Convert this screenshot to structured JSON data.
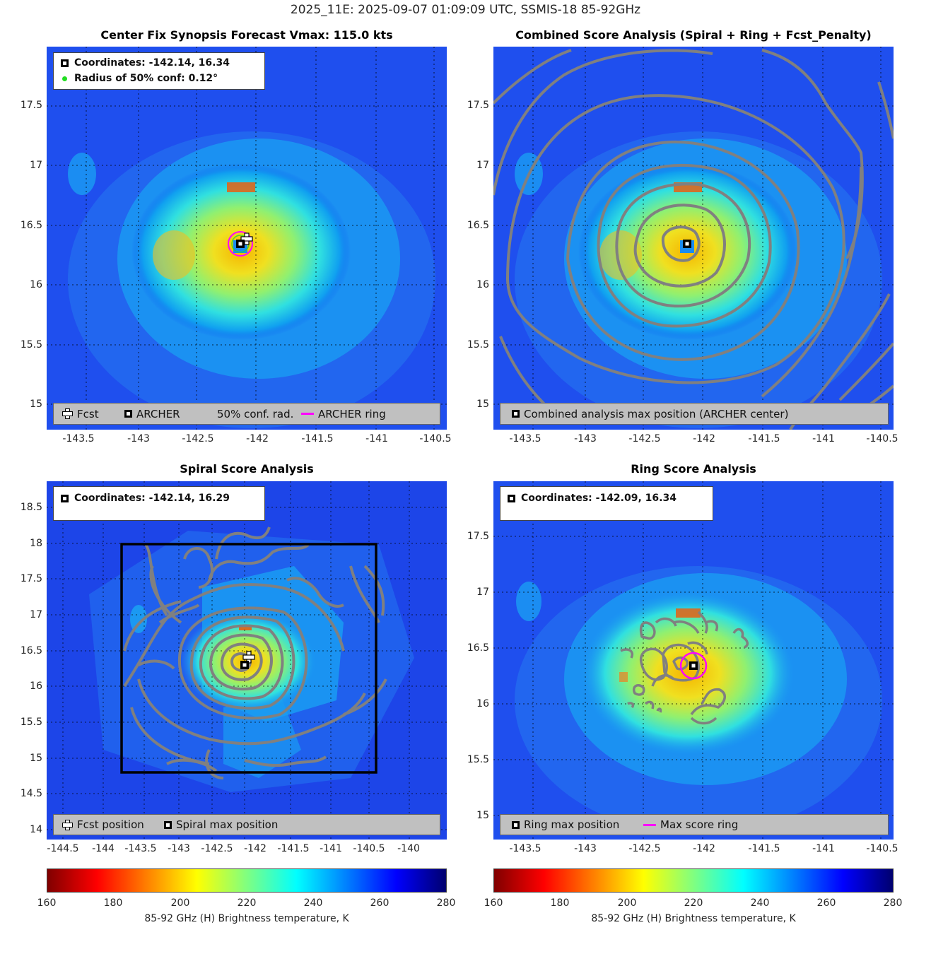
{
  "suptitle": "2025_11E: 2025-09-07 01:09:09 UTC, SSMIS-18 85-92GHz",
  "panels": {
    "synopsis": {
      "title": "Center Fix Synopsis     Forecast Vmax: 115.0 kts",
      "info_coords": "Coordinates: -142.14, 16.34",
      "info_radius": "Radius of 50% conf: 0.12°",
      "legend": {
        "fcst": "Fcst",
        "archer": "ARCHER",
        "conf": "50% conf. rad.",
        "ring": "ARCHER ring"
      }
    },
    "combined": {
      "title": "Combined Score Analysis (Spiral + Ring + Fcst_Penalty)",
      "legend": {
        "max": "Combined analysis max position (ARCHER center)"
      }
    },
    "spiral": {
      "title": "Spiral Score Analysis",
      "info_coords": "Coordinates: -142.14, 16.29",
      "legend": {
        "fcst": "Fcst position",
        "max": "Spiral max position"
      }
    },
    "ring": {
      "title": "Ring Score Analysis",
      "info_coords": "Coordinates: -142.09, 16.34",
      "legend": {
        "max": "Ring max position",
        "ring": "Max score ring"
      }
    }
  },
  "colorbar": {
    "label": "85-92 GHz (H) Brightness temperature, K",
    "ticks": [
      "160",
      "180",
      "200",
      "220",
      "240",
      "260",
      "280"
    ]
  },
  "chart_data": [
    {
      "type": "heatmap",
      "title": "Center Fix Synopsis     Forecast Vmax: 115.0 kts",
      "x_ticks": [
        "-143.5",
        "-143",
        "-142.5",
        "-142",
        "-141.5",
        "-141",
        "-140.5"
      ],
      "y_ticks": [
        "17.5",
        "17",
        "16.5",
        "16",
        "15.5",
        "15"
      ],
      "xlim": [
        -143.85,
        -140.5
      ],
      "ylim": [
        14.8,
        18.05
      ],
      "archer_center": [
        -142.14,
        16.34
      ],
      "forecast_center": [
        -142.08,
        16.38
      ],
      "conf_radius_deg": 0.12,
      "clim": [
        160,
        280
      ]
    },
    {
      "type": "heatmap",
      "title": "Combined Score Analysis (Spiral + Ring + Fcst_Penalty)",
      "x_ticks": [
        "-143.5",
        "-143",
        "-142.5",
        "-142",
        "-141.5",
        "-141",
        "-140.5"
      ],
      "y_ticks": [
        "17.5",
        "17",
        "16.5",
        "16",
        "15.5",
        "15"
      ],
      "xlim": [
        -143.85,
        -140.5
      ],
      "ylim": [
        14.8,
        18.05
      ],
      "max_position": [
        -142.14,
        16.34
      ],
      "clim": [
        160,
        280
      ]
    },
    {
      "type": "heatmap",
      "title": "Spiral Score Analysis",
      "x_ticks": [
        "-144.5",
        "-144",
        "-143.5",
        "-143",
        "-142.5",
        "-142",
        "-141.5",
        "-141",
        "-140.5",
        "-140"
      ],
      "y_ticks": [
        "18.5",
        "18",
        "17.5",
        "17",
        "16.5",
        "16",
        "15.5",
        "15",
        "14.5",
        "14"
      ],
      "xlim": [
        -144.75,
        -139.4
      ],
      "ylim": [
        13.95,
        18.8
      ],
      "max_position": [
        -142.14,
        16.29
      ],
      "forecast_position": [
        -142.08,
        16.38
      ],
      "search_box": {
        "lon": [
          -143.75,
          -140.35
        ],
        "lat": [
          14.8,
          18.0
        ]
      },
      "clim": [
        160,
        280
      ]
    },
    {
      "type": "heatmap",
      "title": "Ring Score Analysis",
      "x_ticks": [
        "-143.5",
        "-143",
        "-142.5",
        "-142",
        "-141.5",
        "-141",
        "-140.5"
      ],
      "y_ticks": [
        "17.5",
        "17",
        "16.5",
        "16",
        "15.5",
        "15"
      ],
      "xlim": [
        -143.85,
        -140.5
      ],
      "ylim": [
        14.8,
        18.05
      ],
      "max_position": [
        -142.09,
        16.34
      ],
      "clim": [
        160,
        280
      ]
    }
  ]
}
